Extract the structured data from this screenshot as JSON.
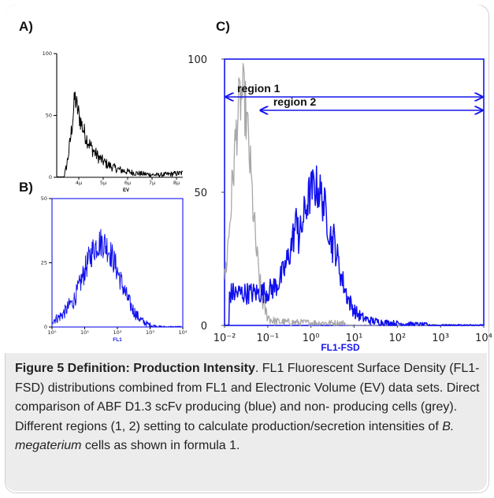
{
  "panels": {
    "a": {
      "label": "A)"
    },
    "b": {
      "label": "B)"
    },
    "c": {
      "label": "C)"
    }
  },
  "chart_data": [
    {
      "type": "line",
      "panel": "A",
      "xlabel": "EV",
      "x_ticks": [
        "4μ",
        "5μ",
        "6μ",
        "7μ",
        "8μ"
      ],
      "y_ticks": [
        "0",
        "50",
        "100"
      ],
      "ylim": [
        0,
        100
      ],
      "series": [
        {
          "color": "#000000",
          "peak_x": 4.2,
          "peak_y": 65
        }
      ]
    },
    {
      "type": "line",
      "panel": "B",
      "xlabel": "FL1",
      "x_ticks": [
        "10⁰",
        "10¹",
        "10²",
        "10³",
        "10⁴"
      ],
      "y_ticks": [
        "0",
        "25",
        "50"
      ],
      "ylim": [
        0,
        50
      ],
      "x_log_range": [
        0,
        4
      ],
      "series": [
        {
          "color": "#1010ee",
          "peak_x": 1.5,
          "peak_y": 33
        }
      ]
    },
    {
      "type": "line",
      "panel": "C",
      "xlabel": "FL1-FSD",
      "x_ticks": [
        "10⁻²",
        "10⁻¹",
        "10⁰",
        "10¹",
        "10²",
        "10³",
        "10⁴"
      ],
      "y_ticks": [
        "0",
        "50",
        "100"
      ],
      "ylim": [
        0,
        100
      ],
      "x_log_range": [
        -2,
        4
      ],
      "series": [
        {
          "color": "#a8a8a8",
          "peak_x": -1.6,
          "peak_y": 85
        },
        {
          "color": "#1010ee",
          "peak_x": 0.1,
          "peak_y": 52
        }
      ],
      "regions": [
        {
          "name": "region 1",
          "x_from": -2,
          "x_to": 4
        },
        {
          "name": "region 2",
          "x_from": -1.2,
          "x_to": 4
        }
      ]
    }
  ],
  "caption": {
    "title": "Figure 5 Definition: Production Intensity",
    "text": ". FL1 Fluorescent Surface Density (FL1-FSD) distributions combined from FL1 and Electronic Volume (EV) data sets. Direct comparison of ABF D1.3 scFv producing (blue) and non- producing cells (grey). Different regions (1, 2) setting to calculate production/secretion intensities of ",
    "italic": "B. megaterium",
    "tail": " cells as shown in formula 1."
  }
}
